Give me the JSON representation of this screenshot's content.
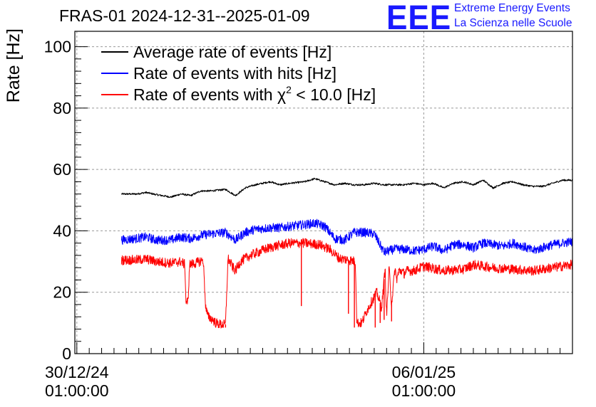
{
  "header": {
    "title": "FRAS-01 2024-12-31--2025-01-09",
    "logo_text": "EEE",
    "logo_line1": "Extreme Energy Events",
    "logo_line2": "La Scienza nelle Scuole"
  },
  "colors": {
    "average": "#000000",
    "hits": "#0000ff",
    "chi2": "#ff0000",
    "logo": "#1a1aff",
    "grid": "#999999"
  },
  "chart_data": {
    "type": "line",
    "title": "FRAS-01 2024-12-31--2025-01-09",
    "xlabel": "",
    "ylabel": "Rate [Hz]",
    "ylim": [
      0,
      105
    ],
    "xlim": [
      -0.04,
      10.0
    ],
    "x_unit": "days since 30/12/24 01:00:00",
    "yticks": [
      "0",
      "20",
      "40",
      "60",
      "80",
      "100"
    ],
    "xticks": [
      {
        "value": 0,
        "line1": "30/12/24",
        "line2": "01:00:00"
      },
      {
        "value": 7,
        "line1": "06/01/25",
        "line2": "01:00:00"
      }
    ],
    "grid": true,
    "legend_position": "top-left",
    "series": [
      {
        "name": "Average rate of events [Hz]",
        "legend_main": "Average rate of events [Hz]",
        "legend_pre": "",
        "legend_sup": "",
        "legend_post": "",
        "color": "#000000",
        "noise": 0.3,
        "x": [
          0.9,
          1.2,
          1.4,
          1.6,
          1.9,
          2.1,
          2.3,
          2.5,
          2.7,
          3.0,
          3.2,
          3.4,
          3.6,
          3.9,
          4.1,
          4.3,
          4.6,
          4.8,
          5.0,
          5.2,
          5.4,
          5.6,
          5.8,
          6.0,
          6.2,
          6.4,
          6.6,
          6.8,
          7.0,
          7.2,
          7.4,
          7.6,
          7.8,
          8.0,
          8.2,
          8.4,
          8.6,
          8.8,
          9.0,
          9.2,
          9.4,
          9.6,
          9.8,
          10.0
        ],
        "y": [
          52,
          52,
          52.5,
          51.8,
          51,
          52,
          51.5,
          53,
          53,
          53.5,
          51.5,
          54,
          55,
          56,
          55,
          55.5,
          56,
          57,
          56,
          55,
          55.5,
          55,
          55,
          55.5,
          55,
          55,
          55,
          55.5,
          55,
          55.5,
          54,
          55.5,
          56,
          55,
          56.5,
          54,
          55.5,
          56,
          55,
          54.5,
          54.5,
          55.5,
          56.5,
          56.5
        ]
      },
      {
        "name": "Rate of events with hits [Hz]",
        "legend_main": "Rate of events with hits [Hz]",
        "legend_pre": "",
        "legend_sup": "",
        "legend_post": "",
        "color": "#0000ff",
        "noise": 1.5,
        "x": [
          0.9,
          1.2,
          1.4,
          1.6,
          1.9,
          2.1,
          2.3,
          2.5,
          2.7,
          3.0,
          3.2,
          3.4,
          3.6,
          3.9,
          4.1,
          4.3,
          4.6,
          4.8,
          5.0,
          5.2,
          5.4,
          5.6,
          5.8,
          6.0,
          6.2,
          6.4,
          6.6,
          6.8,
          7.0,
          7.2,
          7.4,
          7.6,
          7.8,
          8.0,
          8.2,
          8.4,
          8.6,
          8.8,
          9.0,
          9.2,
          9.4,
          9.6,
          9.8,
          10.0
        ],
        "y": [
          37,
          37.5,
          38,
          37,
          37,
          38,
          37.5,
          38.5,
          39,
          39.5,
          37,
          39.5,
          40.5,
          41,
          41,
          41.5,
          42,
          42.5,
          41.5,
          37.5,
          37,
          39.5,
          39.5,
          39,
          33,
          34,
          34,
          33.5,
          34,
          35,
          33.5,
          35.5,
          35.5,
          34.5,
          36,
          35.5,
          35,
          36,
          35,
          33.5,
          34.5,
          35.5,
          36,
          36.5
        ]
      },
      {
        "name": "Rate of events with χ2 < 10.0 [Hz]",
        "legend_main": "",
        "legend_pre": "Rate of events with χ",
        "legend_sup": "2",
        "legend_post": " < 10.0 [Hz]",
        "color": "#ff0000",
        "noise": 1.6,
        "x": [
          0.9,
          1.2,
          1.4,
          1.6,
          1.9,
          2.1,
          2.18,
          2.2,
          2.25,
          2.27,
          2.4,
          2.55,
          2.6,
          2.65,
          2.75,
          2.8,
          2.9,
          3.0,
          3.05,
          3.15,
          3.2,
          3.3,
          3.5,
          3.8,
          4.0,
          4.3,
          4.6,
          4.9,
          5.1,
          5.3,
          5.5,
          5.62,
          5.65,
          5.75,
          5.85,
          5.95,
          6.05,
          6.15,
          6.22,
          6.25,
          6.3,
          6.35,
          6.42,
          6.45,
          6.5,
          6.55,
          6.6,
          6.65,
          6.8,
          7.0,
          7.4,
          7.8,
          8.0,
          8.4,
          8.8,
          9.2,
          9.6,
          10.0
        ],
        "y": [
          30.5,
          30.5,
          30.8,
          30,
          29.5,
          30,
          29,
          17,
          17,
          29,
          29.5,
          30.5,
          15,
          12,
          11,
          10,
          9.5,
          9.5,
          31,
          28,
          27,
          30,
          32,
          34,
          35,
          36,
          36,
          35.5,
          34,
          31,
          30.5,
          30,
          10,
          10,
          14,
          17,
          20,
          15,
          28,
          12,
          28,
          16,
          28,
          24,
          27,
          27,
          26,
          27,
          27,
          28.5,
          27,
          27.5,
          29,
          28,
          27.5,
          27,
          28,
          29
        ]
      }
    ],
    "spikes": [
      {
        "series": 2,
        "x": 4.53,
        "y": 15.5
      },
      {
        "series": 2,
        "x": 5.48,
        "y": 13
      },
      {
        "series": 2,
        "x": 5.6,
        "y": 8.5
      },
      {
        "series": 2,
        "x": 6.02,
        "y": 8.5
      },
      {
        "series": 2,
        "x": 6.12,
        "y": 10
      },
      {
        "series": 2,
        "x": 6.2,
        "y": 11
      },
      {
        "series": 2,
        "x": 6.35,
        "y": 10.5
      },
      {
        "series": 2,
        "x": 2.95,
        "y": 9
      },
      {
        "series": 2,
        "x": 3.0,
        "y": 8.5
      }
    ]
  }
}
